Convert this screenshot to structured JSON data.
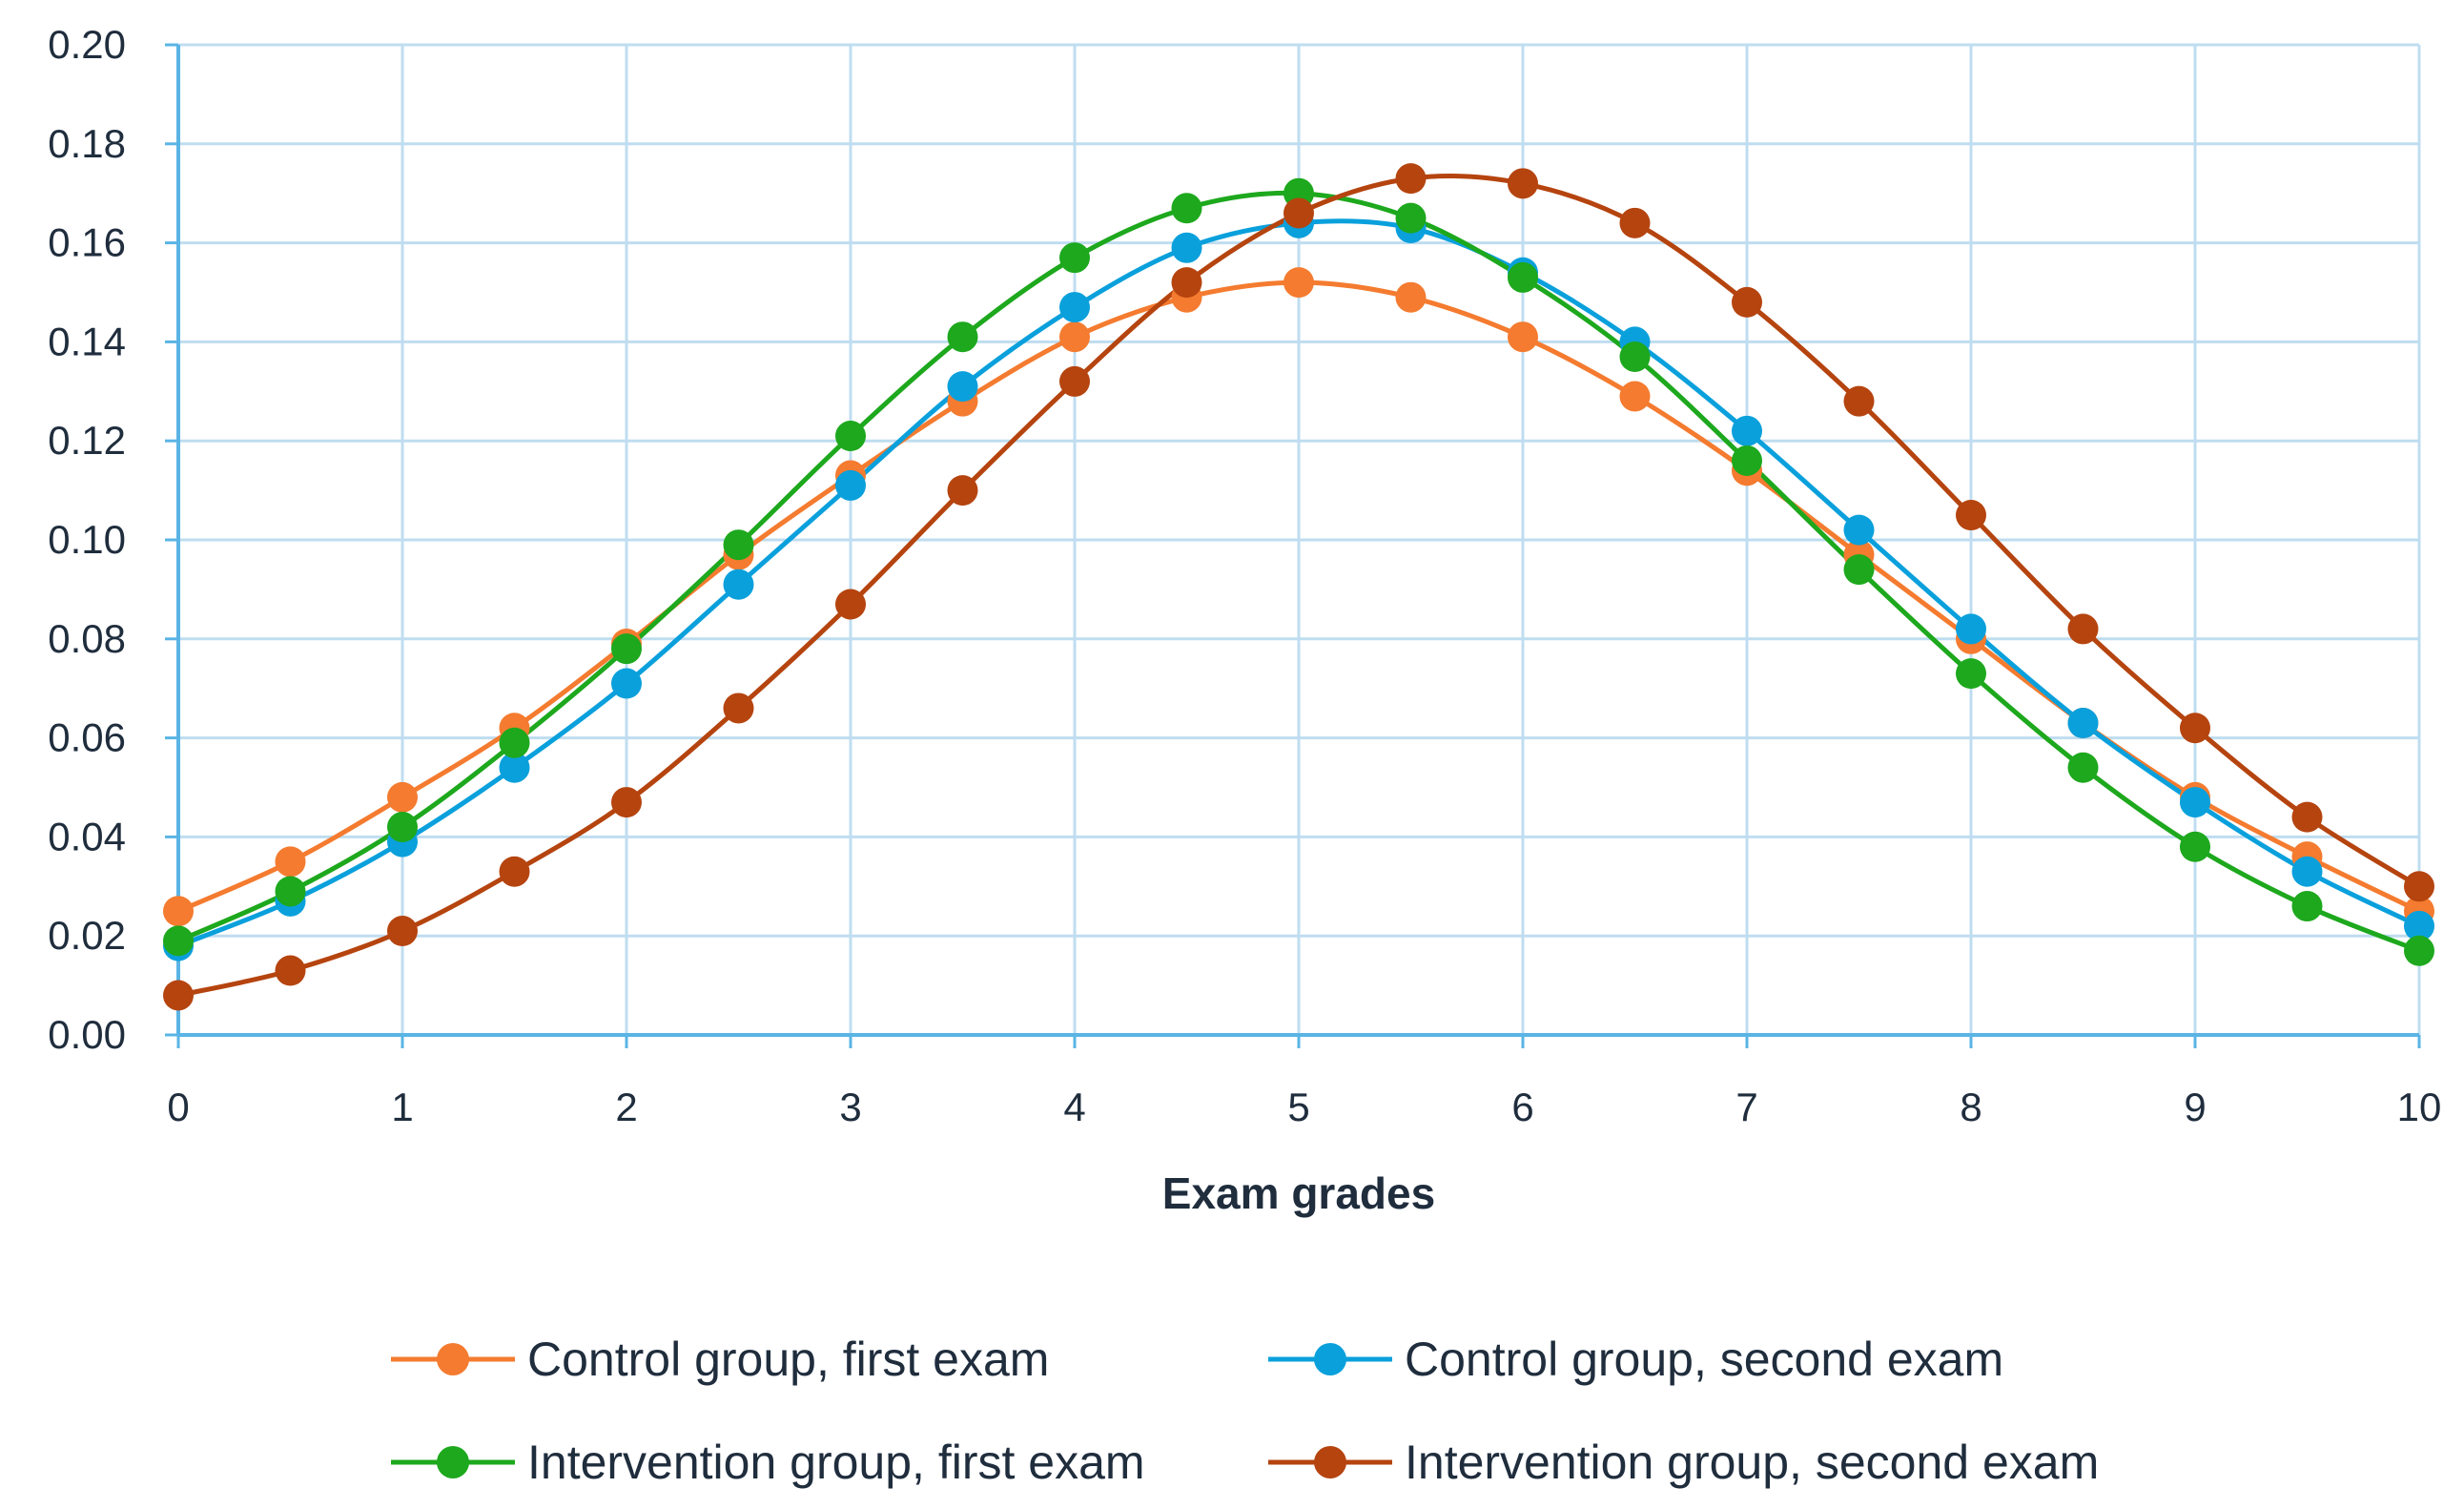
{
  "chart_data": {
    "type": "line",
    "title": "",
    "xlabel": "Exam grades",
    "ylabel": "",
    "xlim": [
      0,
      10
    ],
    "ylim": [
      0,
      0.2
    ],
    "x_ticks": [
      "0",
      "1",
      "2",
      "3",
      "4",
      "5",
      "6",
      "7",
      "8",
      "9",
      "10"
    ],
    "y_ticks": [
      "0.00",
      "0.02",
      "0.04",
      "0.06",
      "0.08",
      "0.10",
      "0.12",
      "0.14",
      "0.16",
      "0.18",
      "0.20"
    ],
    "grid": true,
    "legend_position": "bottom",
    "x": [
      0,
      0.5,
      1,
      1.5,
      2,
      2.5,
      3,
      3.5,
      4,
      4.5,
      5,
      5.5,
      6,
      6.5,
      7,
      7.5,
      8,
      8.5,
      9,
      9.5,
      10
    ],
    "series": [
      {
        "name": "Control group, first exam",
        "color": "#F47B2F",
        "values": [
          0.025,
          0.035,
          0.048,
          0.062,
          0.079,
          0.097,
          0.113,
          0.128,
          0.141,
          0.149,
          0.152,
          0.149,
          0.141,
          0.129,
          0.114,
          0.097,
          0.08,
          0.063,
          0.048,
          0.036,
          0.025
        ]
      },
      {
        "name": "Control group, second exam",
        "color": "#0AA0DC",
        "values": [
          0.018,
          0.027,
          0.039,
          0.054,
          0.071,
          0.091,
          0.111,
          0.131,
          0.147,
          0.159,
          0.164,
          0.163,
          0.154,
          0.14,
          0.122,
          0.102,
          0.082,
          0.063,
          0.047,
          0.033,
          0.022
        ]
      },
      {
        "name": "Intervention group, first exam",
        "color": "#1DA81D",
        "values": [
          0.019,
          0.029,
          0.042,
          0.059,
          0.078,
          0.099,
          0.121,
          0.141,
          0.157,
          0.167,
          0.17,
          0.165,
          0.153,
          0.137,
          0.116,
          0.094,
          0.073,
          0.054,
          0.038,
          0.026,
          0.017
        ]
      },
      {
        "name": "Intervention group, second exam",
        "color": "#B5440F",
        "values": [
          0.008,
          0.013,
          0.021,
          0.033,
          0.047,
          0.066,
          0.087,
          0.11,
          0.132,
          0.152,
          0.166,
          0.173,
          0.172,
          0.164,
          0.148,
          0.128,
          0.105,
          0.082,
          0.062,
          0.044,
          0.03
        ]
      }
    ]
  }
}
